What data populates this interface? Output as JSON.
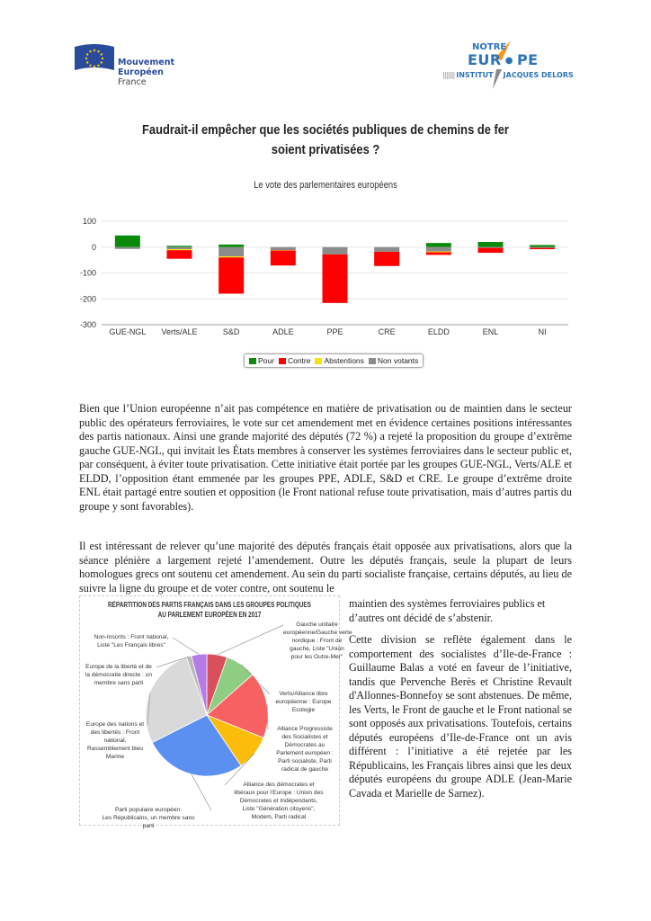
{
  "logos": {
    "left": {
      "lines": [
        "Mouvement",
        "Européen",
        "France"
      ],
      "colors": {
        "flag": "#2a4b9b",
        "stars": "#f2d10c"
      }
    },
    "right": {
      "line1": "NOTRE",
      "line2a": "EUR",
      "line2b": "PE",
      "line3a": "INSTITUT",
      "line3b": "JACQUES DELORS"
    }
  },
  "title": {
    "line1": "Faudrait-il empêcher que les sociétés publiques de chemins de fer",
    "line2": "soient privatisées ?"
  },
  "subtitle": "Le vote des parlementaires européens",
  "chart_data": [
    {
      "type": "bar",
      "stacked": true,
      "categories": [
        "GUE-NGL",
        "Verts/ALE",
        "S&D",
        "ADLE",
        "PPE",
        "CRE",
        "ELDD",
        "ENL",
        "NI"
      ],
      "series": [
        {
          "name": "Pour",
          "color": "#0a8a0a",
          "values": [
            45,
            5,
            10,
            0,
            0,
            0,
            16,
            20,
            8
          ]
        },
        {
          "name": "Contre",
          "color": "#ff0000",
          "values": [
            0,
            -33,
            -140,
            -58,
            -188,
            -55,
            -10,
            -19,
            -5
          ]
        },
        {
          "name": "Abstentions",
          "color": "#f5e60a",
          "values": [
            0,
            -4,
            -4,
            -1,
            0,
            0,
            -3,
            0,
            0
          ]
        },
        {
          "name": "Non votants",
          "color": "#8c8c8c",
          "values": [
            -7,
            -8,
            -36,
            -12,
            -28,
            -18,
            -17,
            -3,
            -3
          ]
        }
      ],
      "yticks": [
        "100",
        "0",
        "-100",
        "-200",
        "-300"
      ],
      "ylim": [
        -300,
        100
      ],
      "grid": true,
      "legend": "bottom"
    },
    {
      "type": "pie",
      "title": [
        "RÉPARTITION DES PARTIS FRANÇAIS DANS LES GROUPES POLITIQUES",
        "AU PARLEMENT EUROPÉEN EN 2017"
      ],
      "slices": [
        {
          "label": [
            "Gauche unitaire",
            "européenne/Gauche verte",
            "nordique : Front de",
            "gauche, Liste \"Union",
            "pour les Outre-Mer\""
          ],
          "value": 4,
          "color": "#d9505a"
        },
        {
          "label": [
            "Verts/Alliance libre",
            "européenne : Europe",
            "Ecologie"
          ],
          "value": 6,
          "color": "#8fce82"
        },
        {
          "label": [
            "Alliance Progressiste",
            "des Socialistes et",
            "Démocrates au",
            "Parlement européen :",
            "Parti socialiste, Parti",
            "radical de gauche"
          ],
          "value": 13,
          "color": "#f76161"
        },
        {
          "label": [
            "Alliance des démocrates et",
            "libéraux pour l'Europe : Union des",
            "Démocrates et Indépendants,",
            "Liste \"Génération citoyens\",",
            "Modem, Parti radical"
          ],
          "value": 7,
          "color": "#fbbc0b"
        },
        {
          "label": [
            "Parti populaire européen:",
            "Les Républicains, un membre sans",
            "parti"
          ],
          "value": 20,
          "color": "#5b8ff0"
        },
        {
          "label": [
            "Europe des nations et",
            "des libertés : Front",
            "national,",
            "Rassemblement bleu",
            "Marine"
          ],
          "value": 20,
          "color": "#d9d9d9"
        },
        {
          "label": [
            "Europe de la liberté et de",
            "la démocratie directe : un",
            "membre sans parti"
          ],
          "value": 1,
          "color": "#b8b8b8"
        },
        {
          "label": [
            "Non-Inscrits : Front national,",
            "Liste \"Les Français libres\""
          ],
          "value": 3,
          "color": "#b57be6"
        }
      ]
    }
  ],
  "body": {
    "p1": "Bien que l’Union européenne n’ait pas compétence en matière de privatisation ou de maintien dans le secteur public des opérateurs ferroviaires, le vote sur cet amendement met en évidence certaines positions intéressantes des partis nationaux. Ainsi une grande majorité des députés (72 %) a rejeté la proposition du groupe d’extrême gauche GUE-NGL, qui invitait les États membres à conserver les systèmes ferroviaires dans le secteur public et, par conséquent, à éviter toute privatisation. Cette initiative était portée par les groupes GUE-NGL, Verts/ALE et ELDD, l’opposition étant emmenée par les groupes PPE, ADLE, S&D et CRE. Le groupe d’extrême droite ENL était partagé entre soutien et opposition (le Front national refuse toute privatisation, mais d’autres partis du groupe y sont favorables).",
    "p2a": "Il est intéressant de relever qu’une majorité des députés français était opposée aux privatisations, alors que la séance plénière a largement rejeté l’amendement. Outre les députés français, seule la plupart de leurs homologues grecs ont soutenu cet amendement.  Au sein du parti socialiste française, certains députés, au lieu de suivre la ligne du groupe et de voter contre, ont soutenu le",
    "p2b": "maintien des systèmes ferroviaires publics et d’autres ont décidé de s’abstenir.",
    "p3": "Cette division se reflète également dans le comportement des socialistes d’Ile-de-France : Guillaume Balas a voté en faveur de l’initiative, tandis que Pervenche Berès et Christine Revault d'Allonnes-Bonnefoy se sont abstenues. De même, les Verts, le Front de gauche et le Front national se sont opposés aux privatisations. Toutefois, certains députés européens d’Ile-de-France ont un avis différent : l’initiative a été rejetée par les Républicains, les Français libres ainsi que les deux députés européens du groupe ADLE (Jean-Marie Cavada et Marielle de Sarnez)."
  }
}
